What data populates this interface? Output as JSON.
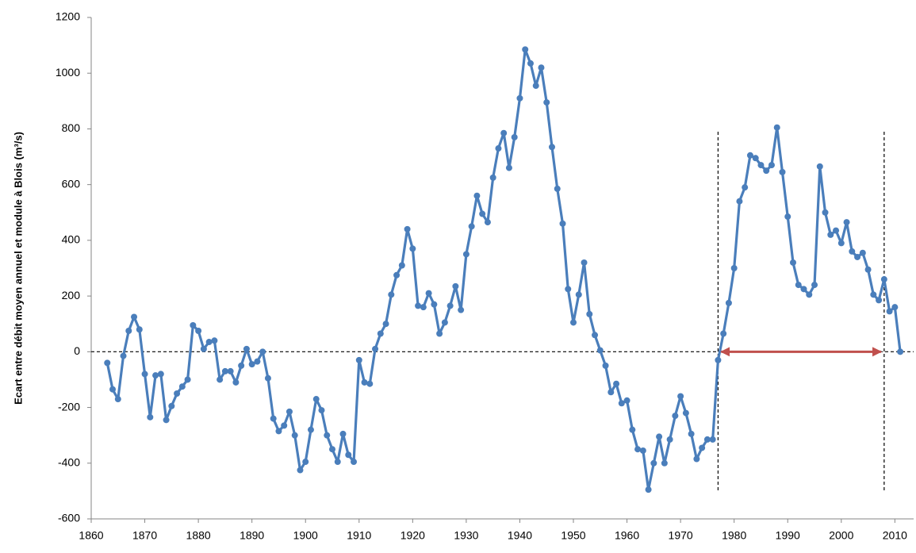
{
  "chart_data": {
    "type": "line",
    "y_label": "Ecart entre débit moyen annuel et module à Blois (m³/s)",
    "x": [
      1863,
      1864,
      1865,
      1866,
      1867,
      1868,
      1869,
      1870,
      1871,
      1872,
      1873,
      1874,
      1875,
      1876,
      1877,
      1878,
      1879,
      1880,
      1881,
      1882,
      1883,
      1884,
      1885,
      1886,
      1887,
      1888,
      1889,
      1890,
      1891,
      1892,
      1893,
      1894,
      1895,
      1896,
      1897,
      1898,
      1899,
      1900,
      1901,
      1902,
      1903,
      1904,
      1905,
      1906,
      1907,
      1908,
      1909,
      1910,
      1911,
      1912,
      1913,
      1914,
      1915,
      1916,
      1917,
      1918,
      1919,
      1920,
      1921,
      1922,
      1923,
      1924,
      1925,
      1926,
      1927,
      1928,
      1929,
      1930,
      1931,
      1932,
      1933,
      1934,
      1935,
      1936,
      1937,
      1938,
      1939,
      1940,
      1941,
      1942,
      1943,
      1944,
      1945,
      1946,
      1947,
      1948,
      1949,
      1950,
      1951,
      1952,
      1953,
      1954,
      1955,
      1956,
      1957,
      1958,
      1959,
      1960,
      1961,
      1962,
      1963,
      1964,
      1965,
      1966,
      1967,
      1968,
      1969,
      1970,
      1971,
      1972,
      1973,
      1974,
      1975,
      1976,
      1977,
      1978,
      1979,
      1980,
      1981,
      1982,
      1983,
      1984,
      1985,
      1986,
      1987,
      1988,
      1989,
      1990,
      1991,
      1992,
      1993,
      1994,
      1995,
      1996,
      1997,
      1998,
      1999,
      2000,
      2001,
      2002,
      2003,
      2004,
      2005,
      2006,
      2007,
      2008,
      2009,
      2010,
      2011
    ],
    "series": [
      {
        "color": "#4a7ebb",
        "values": [
          -40,
          -135,
          -170,
          -15,
          75,
          125,
          80,
          -80,
          -235,
          -85,
          -80,
          -245,
          -195,
          -150,
          -125,
          -100,
          95,
          75,
          10,
          35,
          40,
          -100,
          -70,
          -70,
          -110,
          -50,
          10,
          -45,
          -35,
          0,
          -95,
          -240,
          -285,
          -265,
          -215,
          -300,
          -425,
          -395,
          -280,
          -170,
          -210,
          -300,
          -350,
          -395,
          -295,
          -370,
          -395,
          -30,
          -110,
          -115,
          10,
          65,
          100,
          205,
          275,
          310,
          440,
          370,
          165,
          160,
          210,
          170,
          65,
          105,
          165,
          235,
          150,
          350,
          450,
          560,
          495,
          465,
          625,
          730,
          785,
          660,
          770,
          910,
          1085,
          1035,
          955,
          1020,
          895,
          735,
          585,
          460,
          225,
          105,
          205,
          320,
          135,
          60,
          5,
          -50,
          -145,
          -115,
          -185,
          -175,
          -280,
          -350,
          -355,
          -495,
          -400,
          -305,
          -400,
          -315,
          -230,
          -160,
          -220,
          -295,
          -385,
          -345,
          -315,
          -315,
          -30,
          65,
          175,
          300,
          540,
          590,
          705,
          695,
          670,
          650,
          670,
          805,
          645,
          485,
          320,
          240,
          225,
          205,
          240,
          665,
          500,
          420,
          435,
          390,
          465,
          360,
          340,
          355,
          295,
          205,
          185,
          260,
          145,
          160,
          0
        ]
      }
    ],
    "xlim": [
      1860,
      2013.5
    ],
    "ylim": [
      -600,
      1200
    ],
    "xticks": [
      1860,
      1870,
      1880,
      1890,
      1900,
      1910,
      1920,
      1930,
      1940,
      1950,
      1960,
      1970,
      1980,
      1990,
      2000,
      2010
    ],
    "yticks": [
      -600,
      -400,
      -200,
      0,
      200,
      400,
      600,
      800,
      1000,
      1200
    ],
    "reference_line_y": 0,
    "reference_lines_x": [
      1977,
      2008
    ],
    "reference_lines_top": 790,
    "arrow": {
      "from": 1977,
      "to": 2008,
      "y": 0,
      "color": "#c0504d"
    }
  }
}
